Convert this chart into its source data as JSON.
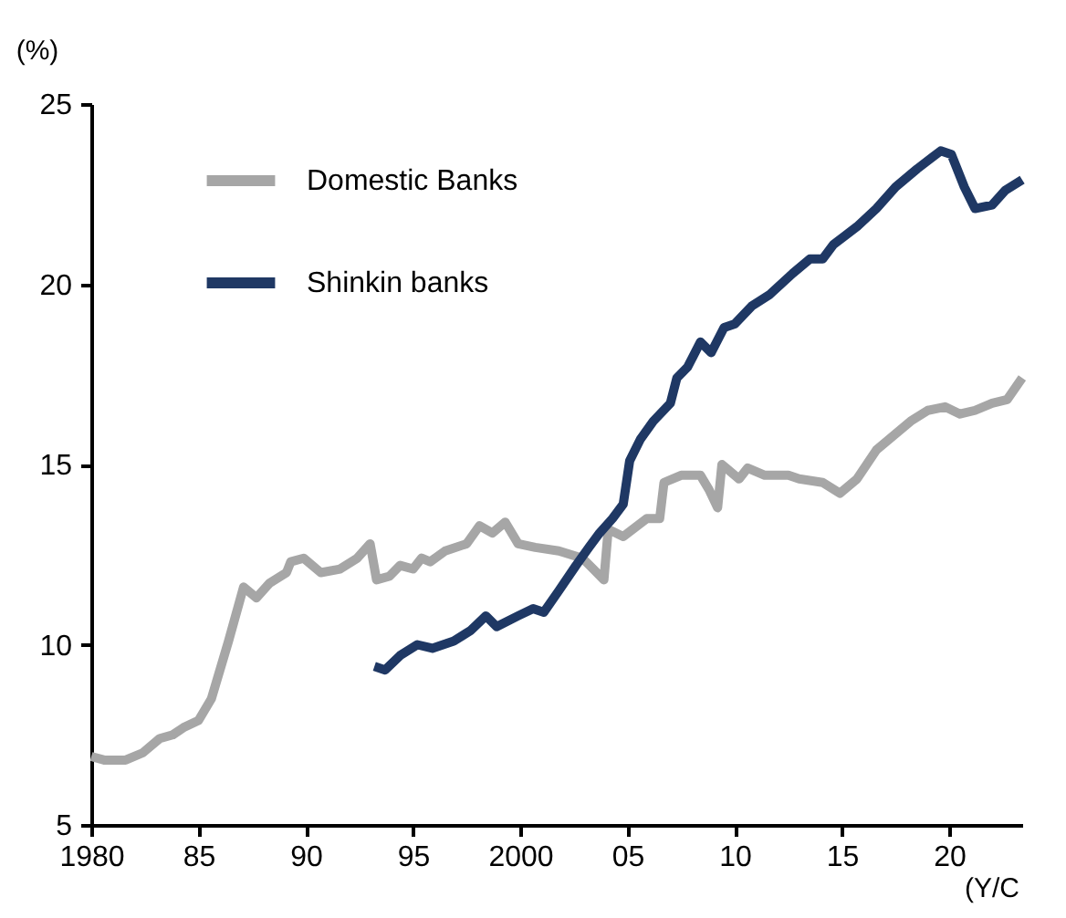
{
  "chart_data": {
    "type": "line",
    "xlabel": "(Y/C",
    "ylabel": "(%)",
    "xlim": [
      1980,
      2023.4
    ],
    "xticks": [
      1980,
      {
        "value": 1985,
        "label": "85"
      },
      {
        "value": 1990,
        "label": "90"
      },
      {
        "value": 1995,
        "label": "95"
      },
      2000,
      {
        "value": 2005,
        "label": "05"
      },
      {
        "value": 2010,
        "label": "10"
      },
      {
        "value": 2015,
        "label": "15"
      },
      {
        "value": 2020,
        "label": "20"
      }
    ],
    "ylim": [
      5,
      25
    ],
    "yticks": [
      5,
      10,
      15,
      20,
      25
    ],
    "grid": false,
    "legend": "top left",
    "line_style": "solid",
    "marker": "none",
    "series": [
      {
        "name": "Domestic Banks",
        "color": "#a6a6a6",
        "x": [
          1980.0,
          1980.6,
          1981.6,
          1982.4,
          1983.2,
          1983.8,
          1984.3,
          1985.0,
          1985.6,
          1986.4,
          1987.1,
          1987.7,
          1988.3,
          1989.1,
          1989.3,
          1989.9,
          1990.7,
          1991.6,
          1992.4,
          1993.0,
          1993.3,
          1993.9,
          1994.4,
          1995.0,
          1995.4,
          1995.8,
          1996.5,
          1997.5,
          1998.1,
          1998.7,
          1999.3,
          1999.9,
          2000.7,
          2001.8,
          2002.9,
          2003.4,
          2003.9,
          2004.1,
          2004.8,
          2005.9,
          2006.5,
          2006.7,
          2007.5,
          2008.4,
          2008.8,
          2009.2,
          2009.4,
          2010.2,
          2010.6,
          2011.4,
          2012.5,
          2013.0,
          2014.1,
          2014.9,
          2015.7,
          2016.6,
          2017.4,
          2018.2,
          2019.0,
          2019.8,
          2020.5,
          2021.2,
          2022.0,
          2022.7,
          2023.4
        ],
        "values": [
          6.9,
          6.8,
          6.8,
          7.0,
          7.4,
          7.5,
          7.7,
          7.9,
          8.5,
          10.1,
          11.6,
          11.3,
          11.7,
          12.0,
          12.3,
          12.4,
          12.0,
          12.1,
          12.4,
          12.8,
          11.8,
          11.9,
          12.2,
          12.1,
          12.4,
          12.3,
          12.6,
          12.8,
          13.3,
          13.1,
          13.4,
          12.8,
          12.7,
          12.6,
          12.4,
          12.1,
          11.8,
          13.2,
          13.0,
          13.5,
          13.5,
          14.5,
          14.7,
          14.7,
          14.3,
          13.8,
          15.0,
          14.6,
          14.9,
          14.7,
          14.7,
          14.6,
          14.5,
          14.2,
          14.6,
          15.4,
          15.8,
          16.2,
          16.5,
          16.6,
          16.4,
          16.5,
          16.7,
          16.8,
          17.4
        ]
      },
      {
        "name": "Shinkin banks",
        "color": "#1f3864",
        "x": [
          1993.2,
          1993.7,
          1994.4,
          1995.2,
          1995.9,
          1996.9,
          1997.7,
          1998.4,
          1998.9,
          1999.9,
          2000.6,
          2001.1,
          2001.8,
          2002.6,
          2003.2,
          2003.7,
          2004.3,
          2004.8,
          2005.1,
          2005.6,
          2006.2,
          2007.0,
          2007.3,
          2007.8,
          2008.4,
          2008.9,
          2009.5,
          2010.0,
          2010.8,
          2011.6,
          2012.7,
          2013.5,
          2014.1,
          2014.6,
          2015.7,
          2016.6,
          2017.5,
          2018.5,
          2019.6,
          2020.1,
          2020.7,
          2021.2,
          2022.0,
          2022.6,
          2023.4
        ],
        "values": [
          9.4,
          9.3,
          9.7,
          10.0,
          9.9,
          10.1,
          10.4,
          10.8,
          10.5,
          10.8,
          11.0,
          10.9,
          11.5,
          12.2,
          12.7,
          13.1,
          13.5,
          13.9,
          15.1,
          15.7,
          16.2,
          16.7,
          17.4,
          17.7,
          18.4,
          18.1,
          18.8,
          18.9,
          19.4,
          19.7,
          20.3,
          20.7,
          20.7,
          21.1,
          21.6,
          22.1,
          22.7,
          23.2,
          23.7,
          23.6,
          22.7,
          22.1,
          22.2,
          22.6,
          22.9
        ]
      }
    ]
  }
}
